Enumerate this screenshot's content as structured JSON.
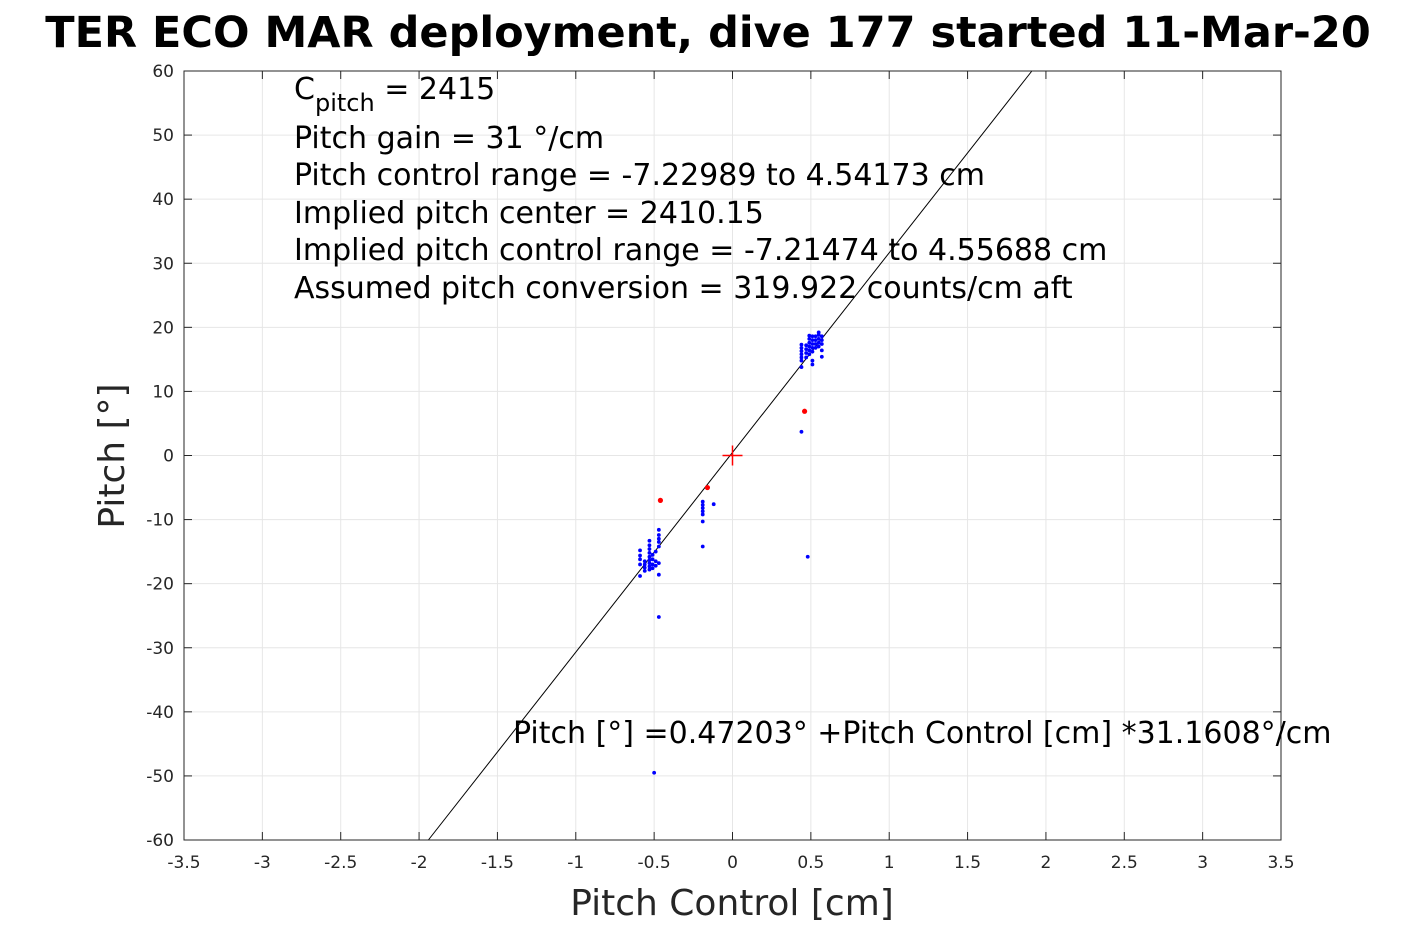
{
  "chart_data": {
    "type": "scatter",
    "title": "TER ECO MAR deployment, dive 177 started 11-Mar-20",
    "xlabel": "Pitch Control [cm]",
    "ylabel": "Pitch [°]",
    "xlim": [
      -3.5,
      3.5
    ],
    "ylim": [
      -60,
      60
    ],
    "grid": true,
    "xticks": [
      "-3.5",
      "-3",
      "-2.5",
      "-2",
      "-1.5",
      "-1",
      "-0.5",
      "0",
      "0.5",
      "1",
      "1.5",
      "2",
      "2.5",
      "3",
      "3.5"
    ],
    "yticks": [
      "60",
      "50",
      "40",
      "30",
      "20",
      "10",
      "0",
      "-10",
      "-20",
      "-30",
      "-40",
      "-50",
      "-60"
    ],
    "annotations": {
      "cpitch_base": "C",
      "cpitch_sub": "pitch",
      "cpitch_value": " = 2415",
      "gain": "Pitch gain = 31 °/cm",
      "control_range": "Pitch control range = -7.22989 to 4.54173 cm",
      "implied_center": "Implied pitch center = 2410.15",
      "implied_range": "Implied pitch control range = -7.21474 to 4.55688 cm",
      "conversion": "Assumed pitch conversion = 319.922 counts/cm aft",
      "fit_equation": "Pitch [°] =0.47203° +Pitch Control [cm] *31.1608°/cm"
    },
    "fit_line": {
      "intercept": 0.47203,
      "slope": 31.1608,
      "color": "#000000"
    },
    "center_marker": {
      "x": 0,
      "y": 0,
      "color": "#ff0000",
      "symbol": "+"
    },
    "series": [
      {
        "color": "#0000ff",
        "points": [
          [
            -0.59,
            -18.8
          ],
          [
            -0.59,
            -17.0
          ],
          [
            -0.59,
            -16.2
          ],
          [
            -0.59,
            -15.6
          ],
          [
            -0.59,
            -14.8
          ],
          [
            -0.56,
            -18.0
          ],
          [
            -0.56,
            -17.5
          ],
          [
            -0.56,
            -17.0
          ],
          [
            -0.56,
            -16.5
          ],
          [
            -0.53,
            -17.8
          ],
          [
            -0.53,
            -17.3
          ],
          [
            -0.53,
            -16.8
          ],
          [
            -0.53,
            -16.3
          ],
          [
            -0.53,
            -15.8
          ],
          [
            -0.53,
            -15.2
          ],
          [
            -0.53,
            -14.6
          ],
          [
            -0.53,
            -14.0
          ],
          [
            -0.53,
            -13.3
          ],
          [
            -0.51,
            -17.6
          ],
          [
            -0.51,
            -17.0
          ],
          [
            -0.51,
            -16.2
          ],
          [
            -0.51,
            -15.5
          ],
          [
            -0.49,
            -17.2
          ],
          [
            -0.49,
            -16.5
          ],
          [
            -0.49,
            -15.0
          ],
          [
            -0.47,
            -18.6
          ],
          [
            -0.47,
            -16.8
          ],
          [
            -0.47,
            -14.2
          ],
          [
            -0.47,
            -13.5
          ],
          [
            -0.47,
            -13.0
          ],
          [
            -0.47,
            -12.4
          ],
          [
            -0.47,
            -11.6
          ],
          [
            -0.47,
            -25.2
          ],
          [
            -0.5,
            -49.5
          ],
          [
            -0.19,
            -7.2
          ],
          [
            -0.19,
            -7.7
          ],
          [
            -0.19,
            -8.2
          ],
          [
            -0.19,
            -8.7
          ],
          [
            -0.19,
            -9.2
          ],
          [
            -0.19,
            -10.3
          ],
          [
            -0.19,
            -14.2
          ],
          [
            -0.12,
            -7.6
          ],
          [
            0.44,
            13.8
          ],
          [
            0.44,
            14.8
          ],
          [
            0.44,
            15.3
          ],
          [
            0.44,
            15.8
          ],
          [
            0.44,
            16.3
          ],
          [
            0.44,
            16.8
          ],
          [
            0.44,
            17.3
          ],
          [
            0.47,
            15.3
          ],
          [
            0.47,
            16.0
          ],
          [
            0.47,
            16.6
          ],
          [
            0.47,
            17.2
          ],
          [
            0.49,
            15.8
          ],
          [
            0.49,
            16.4
          ],
          [
            0.49,
            17.0
          ],
          [
            0.49,
            17.6
          ],
          [
            0.49,
            18.2
          ],
          [
            0.49,
            18.7
          ],
          [
            0.51,
            14.2
          ],
          [
            0.51,
            14.8
          ],
          [
            0.51,
            16.2
          ],
          [
            0.51,
            16.8
          ],
          [
            0.51,
            17.4
          ],
          [
            0.51,
            18.0
          ],
          [
            0.51,
            18.6
          ],
          [
            0.53,
            16.8
          ],
          [
            0.53,
            17.4
          ],
          [
            0.53,
            18.0
          ],
          [
            0.53,
            18.6
          ],
          [
            0.55,
            17.0
          ],
          [
            0.55,
            17.6
          ],
          [
            0.55,
            18.2
          ],
          [
            0.55,
            18.8
          ],
          [
            0.55,
            19.2
          ],
          [
            0.57,
            15.4
          ],
          [
            0.57,
            16.4
          ],
          [
            0.57,
            17.4
          ],
          [
            0.57,
            18.0
          ],
          [
            0.57,
            18.6
          ],
          [
            0.44,
            3.7
          ],
          [
            0.48,
            -15.8
          ]
        ]
      },
      {
        "color": "#ff0000",
        "points": [
          [
            -0.46,
            -7.0
          ],
          [
            -0.16,
            -5.0
          ],
          [
            0.46,
            6.9
          ]
        ]
      }
    ]
  }
}
